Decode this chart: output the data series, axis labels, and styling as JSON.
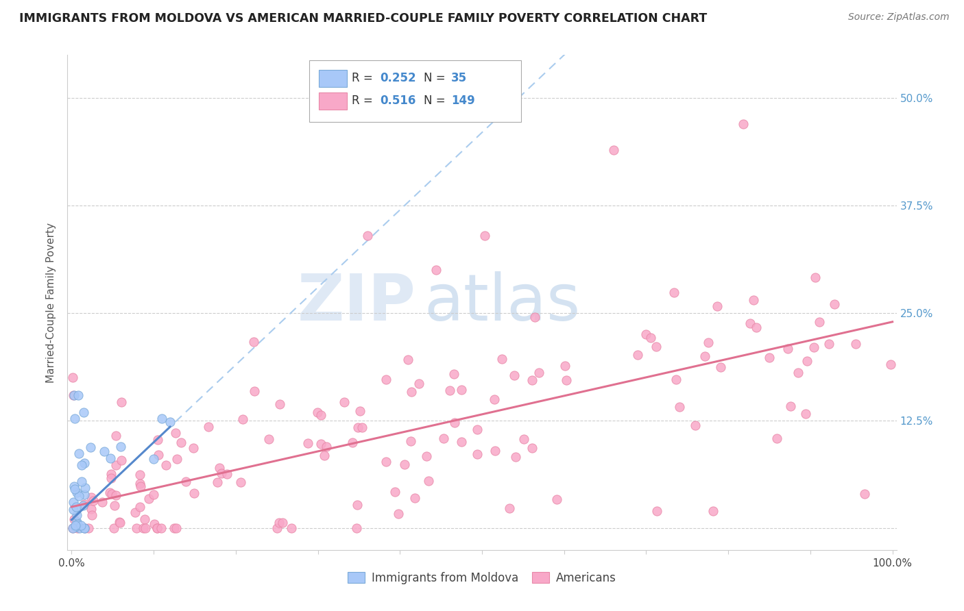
{
  "title": "IMMIGRANTS FROM MOLDOVA VS AMERICAN MARRIED-COUPLE FAMILY POVERTY CORRELATION CHART",
  "source": "Source: ZipAtlas.com",
  "ylabel": "Married-Couple Family Poverty",
  "r_moldova": 0.252,
  "n_moldova": 35,
  "r_americans": 0.516,
  "n_americans": 149,
  "color_moldova": "#a8c8f8",
  "color_americans": "#f8a8c8",
  "edge_moldova": "#7aaad8",
  "edge_americans": "#e888a8",
  "trend_moldova": "#5588cc",
  "trend_americans": "#e07090",
  "trend_dashed": "#aaccee",
  "watermark_zip": "ZIP",
  "watermark_atlas": "atlas",
  "background_color": "#ffffff",
  "grid_color": "#cccccc",
  "ytick_color": "#5599cc",
  "xtick_color": "#333333"
}
